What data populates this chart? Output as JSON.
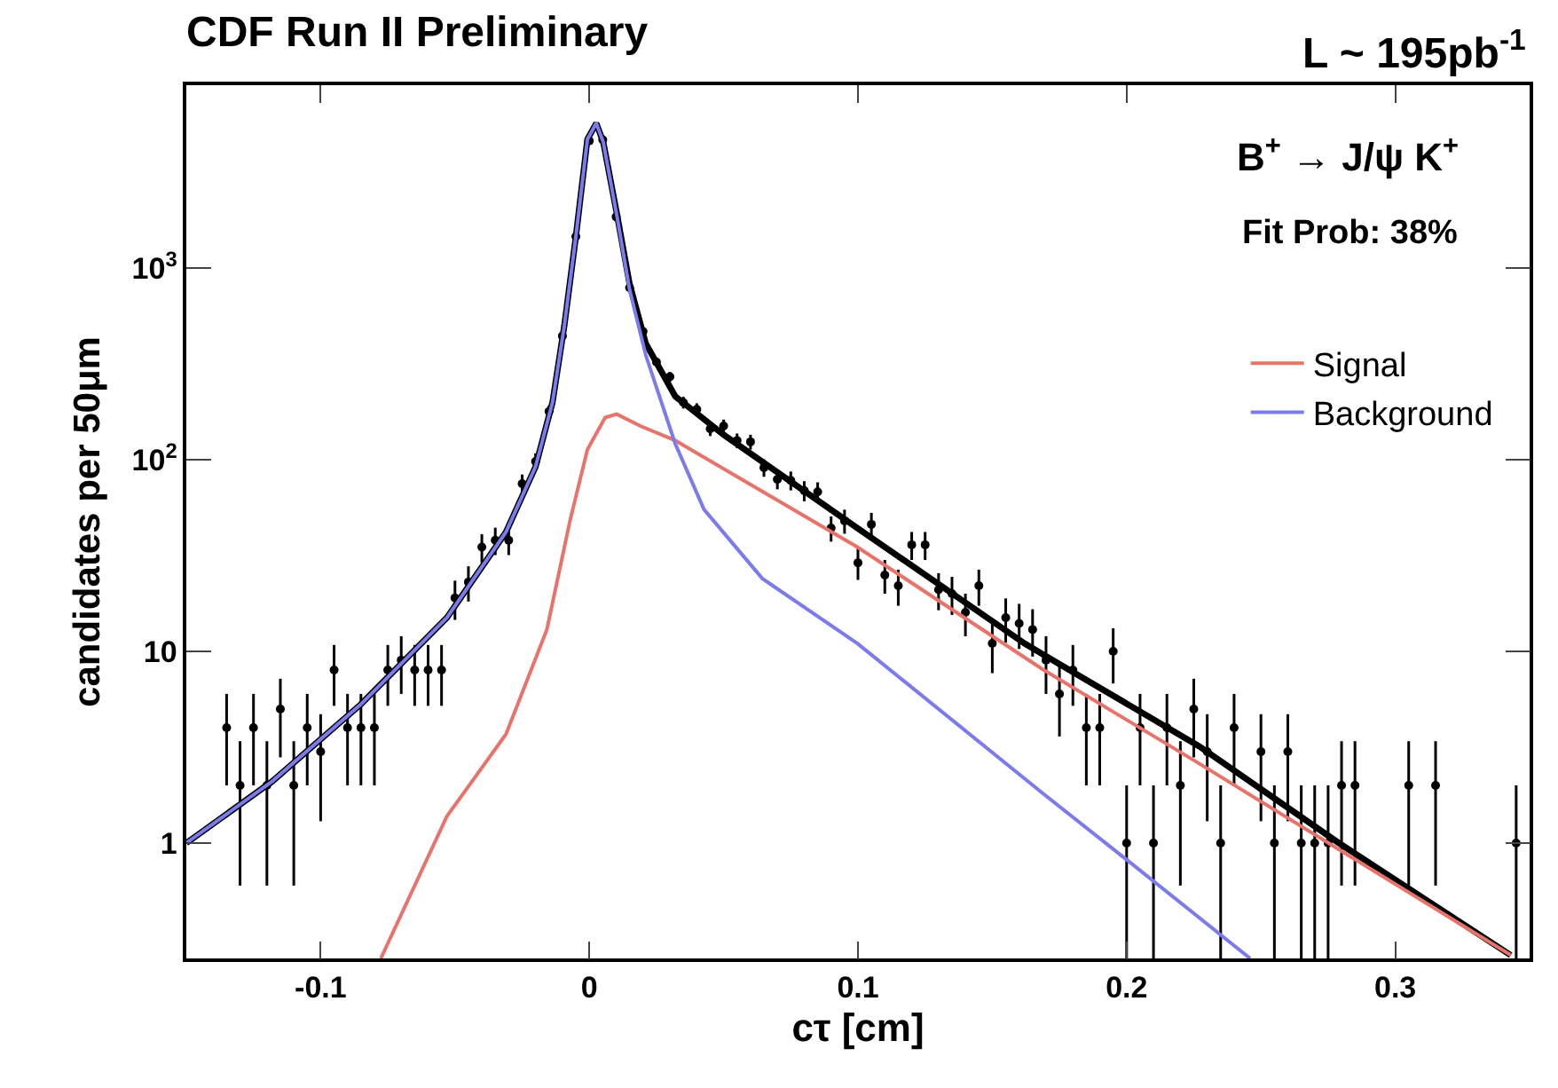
{
  "chart_data": {
    "type": "scatter",
    "title": "CDF Run II Preliminary",
    "xlabel": "cτ [cm]",
    "ylabel": "candidates per 50μm",
    "annotations": [
      "L ~ 195pb$^{-1}$",
      "B$^{+}$ → J/ψ K$^{+}$",
      "Fit Prob: 38%"
    ],
    "log": "y",
    "grid": false,
    "legend": "top right",
    "xlim": [
      -0.15,
      0.35
    ],
    "xticks": [
      -0.1,
      0,
      0.1,
      0.2,
      0.3
    ],
    "ylim": [
      0.25,
      9000
    ],
    "yticks": [
      1,
      10,
      {
        "value": 100,
        "label": "10$^{2}$"
      },
      {
        "value": 1000,
        "label": "10$^{3}$"
      }
    ],
    "series": [
      {
        "color": "#000000",
        "marker": "circle",
        "x": [
          -0.135,
          -0.13,
          -0.125,
          -0.12,
          -0.115,
          -0.11,
          -0.105,
          -0.1,
          -0.095,
          -0.09,
          -0.085,
          -0.08,
          -0.075,
          -0.07,
          -0.065,
          -0.06,
          -0.055,
          -0.05,
          -0.045,
          -0.04,
          -0.035,
          -0.03,
          -0.025,
          -0.02,
          -0.015,
          -0.01,
          -0.005,
          0,
          0.005,
          0.01,
          0.015,
          0.02,
          0.025,
          0.03,
          0.035,
          0.04,
          0.045,
          0.05,
          0.055,
          0.06,
          0.065,
          0.07,
          0.075,
          0.08,
          0.085,
          0.09,
          0.095,
          0.1,
          0.105,
          0.11,
          0.115,
          0.12,
          0.125,
          0.13,
          0.135,
          0.14,
          0.145,
          0.15,
          0.155,
          0.16,
          0.165,
          0.17,
          0.175,
          0.18,
          0.185,
          0.19,
          0.195,
          0.2,
          0.205,
          0.21,
          0.215,
          0.22,
          0.225,
          0.23,
          0.235,
          0.24,
          0.25,
          0.255,
          0.26,
          0.265,
          0.27,
          0.275,
          0.28,
          0.285,
          0.305,
          0.315,
          0.345
        ],
        "values": [
          4,
          2,
          4,
          2,
          5,
          2,
          4,
          3,
          8,
          4,
          4,
          4,
          8,
          9,
          8,
          8,
          8,
          19,
          23,
          35,
          38,
          38,
          75,
          98,
          179,
          442,
          1460,
          4610,
          4670,
          1850,
          790,
          467,
          323,
          271,
          199,
          183,
          145,
          150,
          126,
          124,
          91,
          79,
          78,
          69,
          68,
          44,
          48,
          29,
          46,
          25,
          22,
          36,
          36,
          21,
          20,
          16,
          22,
          11,
          15,
          14,
          13,
          9,
          6,
          8,
          4,
          4,
          10,
          1,
          4,
          1,
          4,
          2,
          5,
          3,
          1,
          4,
          3,
          1,
          3,
          1,
          1,
          1,
          2,
          2,
          2,
          2,
          1
        ],
        "errors": [
          2,
          1.4,
          2,
          1.4,
          2.2,
          1.4,
          2,
          1.7,
          2.8,
          2,
          2,
          2,
          2.8,
          3,
          2.8,
          2.8,
          2.8,
          4.4,
          4.8,
          5.9,
          6.2,
          6.2,
          8.7,
          9.9,
          13,
          21,
          38,
          68,
          68,
          43,
          28,
          22,
          18,
          16,
          14,
          14,
          12,
          12,
          11,
          11,
          9.5,
          8.9,
          8.8,
          8.3,
          8.2,
          6.6,
          6.9,
          5.4,
          6.8,
          5,
          4.7,
          6,
          6,
          4.6,
          4.5,
          4,
          4.7,
          3.3,
          3.9,
          3.7,
          3.6,
          3,
          2.4,
          2.8,
          2,
          2,
          3.2,
          [
            0.25,
            2
          ],
          2,
          [
            0.25,
            2
          ],
          2,
          1.4,
          2.2,
          1.7,
          [
            0.25,
            2
          ],
          2,
          1.7,
          [
            0.25,
            2
          ],
          1.7,
          [
            0.25,
            2
          ],
          [
            0.25,
            2
          ],
          [
            0.25,
            2
          ],
          1.4,
          1.4,
          1.4,
          1.4,
          [
            0.25,
            2
          ]
        ]
      },
      {
        "type": "line",
        "color": "#000000",
        "marker": "none",
        "line_style": "solid",
        "x": [
          -0.15,
          -0.118,
          -0.085,
          -0.053,
          -0.031,
          -0.02,
          -0.0137,
          -0.0093,
          -0.005,
          -0.0007,
          0.0026,
          0.0052,
          0.0102,
          0.015,
          0.021,
          0.032,
          0.05,
          0.0998,
          0.162,
          0.1685,
          0.227,
          0.279,
          0.343
        ],
        "values": [
          1.0,
          2.1,
          5.3,
          15,
          42,
          92,
          199,
          500,
          1460,
          4700,
          5700,
          4540,
          1940,
          826,
          405,
          214,
          135,
          44,
          11,
          9.7,
          3.2,
          1.0,
          0.26
        ]
      },
      {
        "type": "line",
        "name": "Signal",
        "color": "#e8736b",
        "marker": "none",
        "line_style": "solid",
        "x": [
          -0.0776,
          -0.053,
          -0.031,
          -0.0158,
          -0.0072,
          -0.0007,
          0.0059,
          0.0102,
          0.019,
          0.032,
          0.0998,
          0.1685,
          0.227,
          0.343
        ],
        "values": [
          0.25,
          1.38,
          3.7,
          13,
          48,
          113,
          166,
          173,
          150,
          126,
          35,
          8.1,
          2.6,
          0.26
        ]
      },
      {
        "type": "line",
        "name": "Background",
        "color": "#7b7bee",
        "marker": "none",
        "line_style": "solid",
        "x": [
          -0.15,
          -0.118,
          -0.085,
          -0.053,
          -0.031,
          -0.02,
          -0.0137,
          -0.0093,
          -0.005,
          -0.0007,
          0.0026,
          0.0052,
          0.0102,
          0.015,
          0.021,
          0.032,
          0.0427,
          0.0644,
          0.0998,
          0.1685,
          0.199,
          0.246
        ],
        "values": [
          1.0,
          2.1,
          5.3,
          15,
          42,
          92,
          199,
          500,
          1460,
          4700,
          5700,
          4540,
          1900,
          770,
          352,
          121,
          55,
          24,
          11,
          1.83,
          0.84,
          0.25
        ]
      }
    ]
  }
}
